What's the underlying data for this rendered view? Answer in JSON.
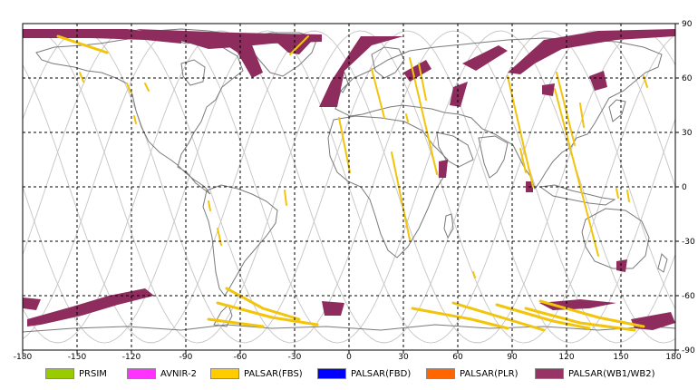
{
  "map": {
    "lon_ticks": [
      "-180",
      "-150",
      "-120",
      "-90",
      "-60",
      "-30",
      "0",
      "30",
      "60",
      "90",
      "120",
      "150",
      "180"
    ],
    "lat_ticks": [
      "90",
      "60",
      "30",
      "0",
      "-30",
      "-60",
      "-90"
    ],
    "colors": {
      "frame": "#000000",
      "grid": "#000000",
      "coast": "#7a7a7a",
      "orbit": "#c8c8c8",
      "fbs_swath": "#f2c40a",
      "wb_swath": "#8e2d5d"
    }
  },
  "legend": [
    {
      "label": "PRSIM",
      "color": "#99cc00"
    },
    {
      "label": "AVNIR-2",
      "color": "#ff33ff"
    },
    {
      "label": "PALSAR(FBS)",
      "color": "#ffcc00"
    },
    {
      "label": "PALSAR(FBD)",
      "color": "#0000ff"
    },
    {
      "label": "PALSAR(PLR)",
      "color": "#ff6600"
    },
    {
      "label": "PALSAR(WB1/WB2)",
      "color": "#993366"
    }
  ]
}
